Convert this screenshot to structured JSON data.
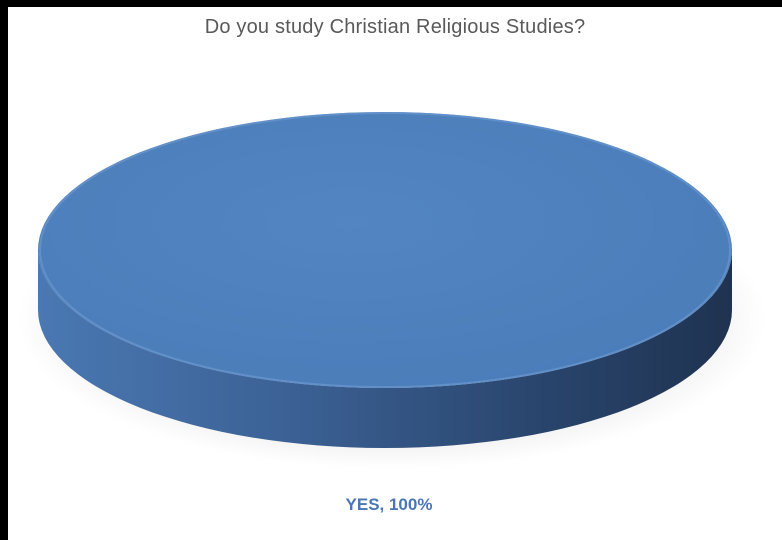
{
  "chart_data": {
    "type": "pie",
    "title": "Do you study Christian Religious Studies?",
    "categories": [
      "YES"
    ],
    "values": [
      100
    ],
    "data_labels": [
      "YES, 100%"
    ],
    "style": "3d",
    "legend": "none",
    "grid": false,
    "colors": {
      "slice": "#4f81bd",
      "slice_side_dark": "#1f3350",
      "label": "#4a76b5"
    }
  }
}
